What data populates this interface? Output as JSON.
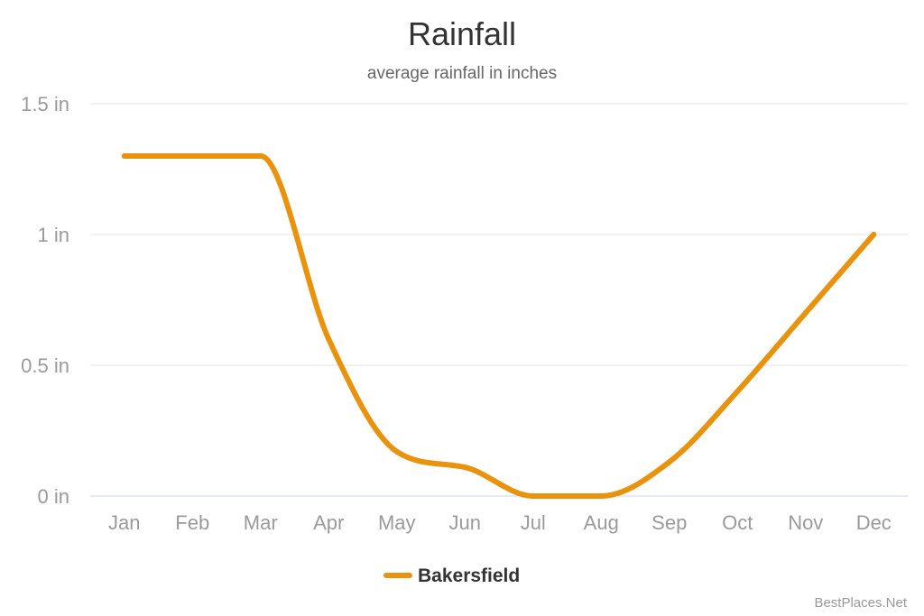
{
  "chart_data": {
    "type": "line",
    "title": "Rainfall",
    "subtitle": "average rainfall in inches",
    "categories": [
      "Jan",
      "Feb",
      "Mar",
      "Apr",
      "May",
      "Jun",
      "Jul",
      "Aug",
      "Sep",
      "Oct",
      "Nov",
      "Dec"
    ],
    "series": [
      {
        "name": "Bakersfield",
        "values": [
          1.3,
          1.3,
          1.3,
          0.6,
          0.17,
          0.11,
          0.0,
          0.0,
          0.13,
          0.4,
          0.7,
          1.0
        ]
      }
    ],
    "y_ticks": [
      "0 in",
      "0.5 in",
      "1 in",
      "1.5 in"
    ],
    "y_tick_values": [
      0,
      0.5,
      1,
      1.5
    ],
    "ylim": [
      0,
      1.5
    ],
    "grid": true,
    "legend_position": "bottom-center",
    "series_color": "#E8920E"
  },
  "credit": "BestPlaces.Net"
}
